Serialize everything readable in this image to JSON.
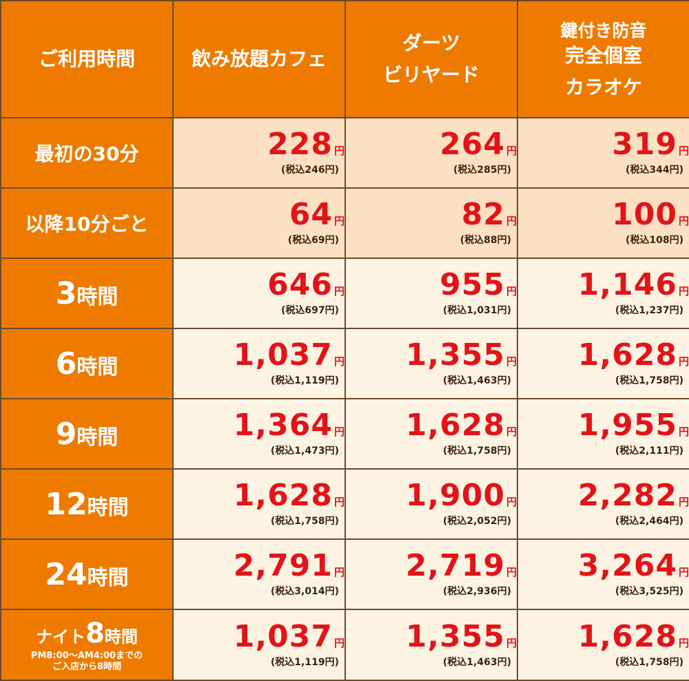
{
  "header": {
    "time": "ご利用時間",
    "col1": "飲み放題カフェ",
    "col2_line1": "ダーツ",
    "col2_line2": "ビリヤード",
    "col3_line1": "鍵付き防音",
    "col3_line2": "完全個室",
    "col3_line3": "カラオケ"
  },
  "currency": "円",
  "rows": [
    {
      "label": "最初の30分",
      "prices": [
        {
          "amt": "228",
          "tax": "(税込246円)"
        },
        {
          "amt": "264",
          "tax": "(税込285円)"
        },
        {
          "amt": "319",
          "tax": "(税込344円)"
        }
      ]
    },
    {
      "label": "以降10分ごと",
      "prices": [
        {
          "amt": "64",
          "tax": "(税込69円)"
        },
        {
          "amt": "82",
          "tax": "(税込88円)"
        },
        {
          "amt": "100",
          "tax": "(税込108円)"
        }
      ]
    },
    {
      "label_num": "3",
      "label_unit": "時間",
      "prices": [
        {
          "amt": "646",
          "tax": "(税込697円)"
        },
        {
          "amt": "955",
          "tax": "(税込1,031円)"
        },
        {
          "amt": "1,146",
          "tax": "(税込1,237円)"
        }
      ]
    },
    {
      "label_num": "6",
      "label_unit": "時間",
      "prices": [
        {
          "amt": "1,037",
          "tax": "(税込1,119円)"
        },
        {
          "amt": "1,355",
          "tax": "(税込1,463円)"
        },
        {
          "amt": "1,628",
          "tax": "(税込1,758円)"
        }
      ]
    },
    {
      "label_num": "9",
      "label_unit": "時間",
      "prices": [
        {
          "amt": "1,364",
          "tax": "(税込1,473円)"
        },
        {
          "amt": "1,628",
          "tax": "(税込1,758円)"
        },
        {
          "amt": "1,955",
          "tax": "(税込2,111円)"
        }
      ]
    },
    {
      "label_num": "12",
      "label_unit": "時間",
      "prices": [
        {
          "amt": "1,628",
          "tax": "(税込1,758円)"
        },
        {
          "amt": "1,900",
          "tax": "(税込2,052円)"
        },
        {
          "amt": "2,282",
          "tax": "(税込2,464円)"
        }
      ]
    },
    {
      "label_num": "24",
      "label_unit": "時間",
      "prices": [
        {
          "amt": "2,791",
          "tax": "(税込3,014円)"
        },
        {
          "amt": "2,719",
          "tax": "(税込2,936円)"
        },
        {
          "amt": "3,264",
          "tax": "(税込3,525円)"
        }
      ]
    },
    {
      "label_pre": "ナイト",
      "label_num": "8",
      "label_unit": "時間",
      "note_line1": "PM8:00〜AM4:00までの",
      "note_line2": "ご入店から8時間",
      "prices": [
        {
          "amt": "1,037",
          "tax": "(税込1,119円)"
        },
        {
          "amt": "1,355",
          "tax": "(税込1,463円)"
        },
        {
          "amt": "1,628",
          "tax": "(税込1,758円)"
        }
      ]
    }
  ]
}
